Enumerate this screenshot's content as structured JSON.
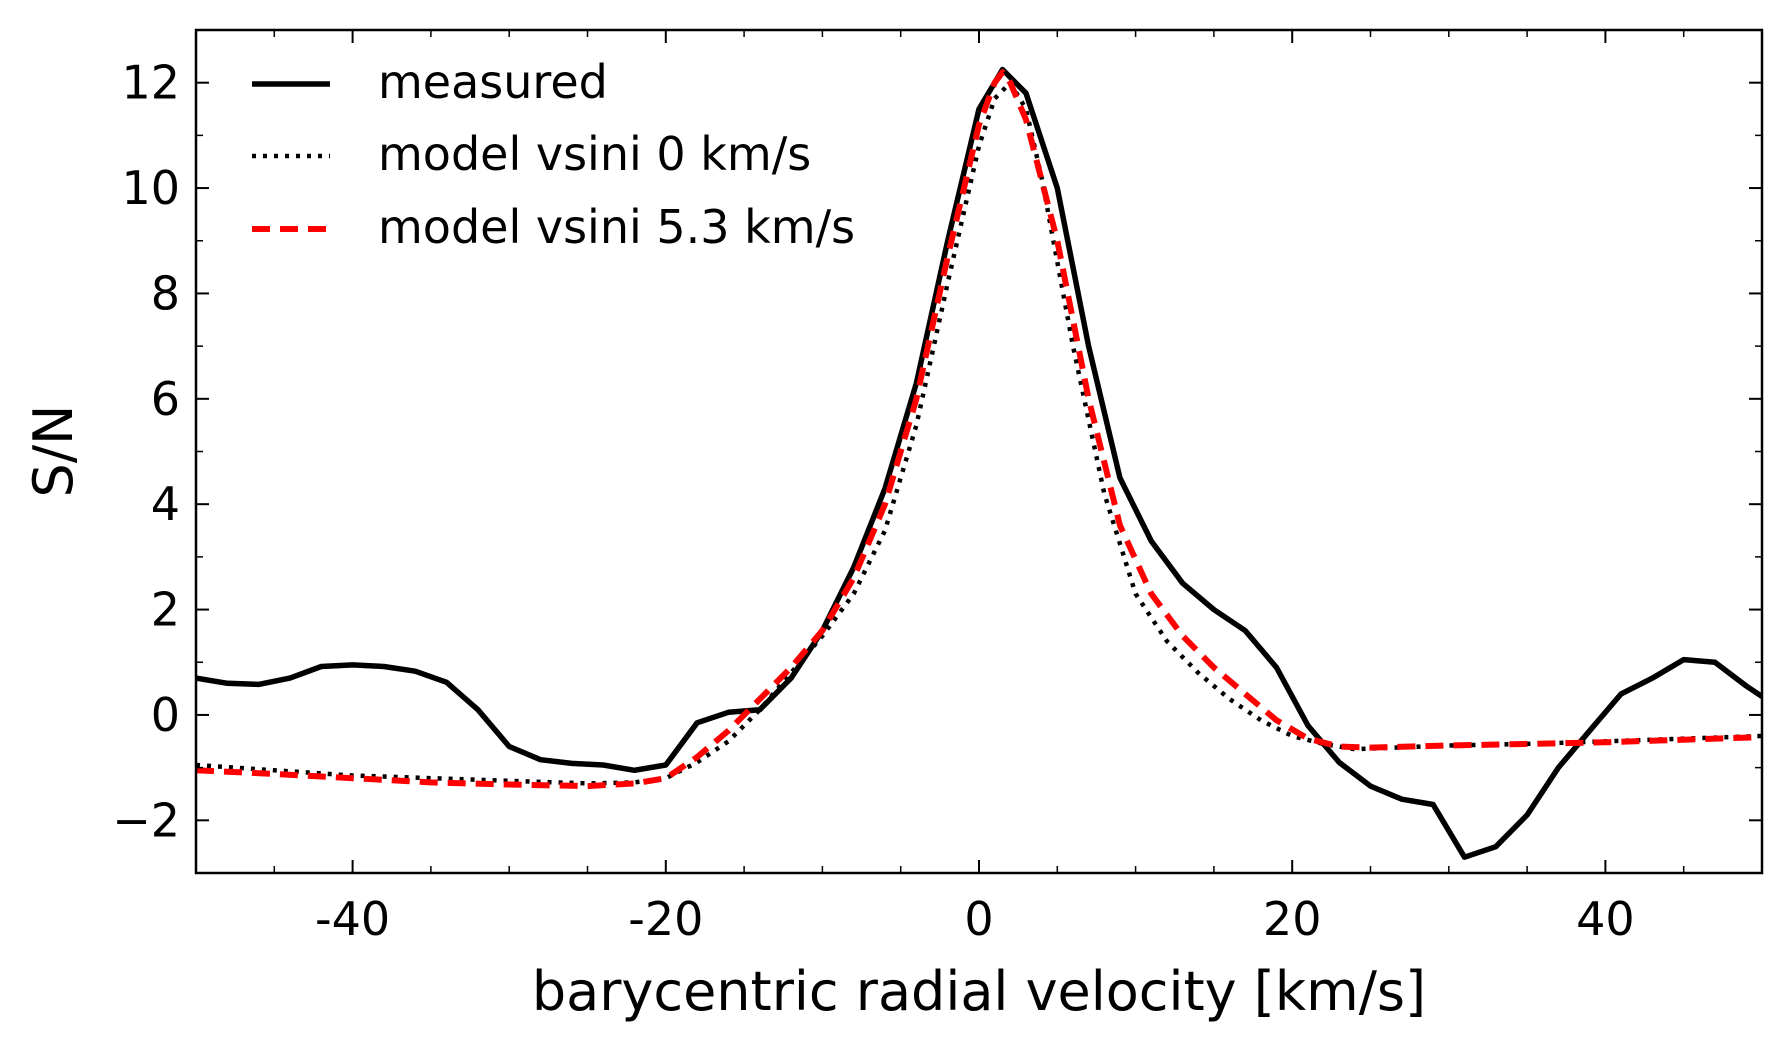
{
  "chart_data": {
    "type": "line",
    "title": "",
    "xlabel": "barycentric radial velocity [km/s]",
    "ylabel": "S/N",
    "xlim": [
      -50,
      50
    ],
    "ylim": [
      -3,
      13
    ],
    "x_ticks": [
      -40,
      -20,
      0,
      20,
      40
    ],
    "x_tick_labels": [
      "-40",
      "-20",
      "0",
      "20",
      "40"
    ],
    "y_ticks": [
      -2,
      0,
      2,
      4,
      6,
      8,
      10,
      12
    ],
    "y_tick_labels": [
      "−2",
      "0",
      "2",
      "4",
      "6",
      "8",
      "10",
      "12"
    ],
    "grid": false,
    "legend_position": "top-left",
    "series": [
      {
        "name": "measured",
        "style": "solid",
        "color": "#000000",
        "x": [
          -50,
          -48,
          -46,
          -44,
          -42,
          -40,
          -38,
          -36,
          -34,
          -32,
          -30,
          -28,
          -26,
          -24,
          -22,
          -20,
          -18,
          -16,
          -14,
          -12,
          -10,
          -8,
          -6,
          -4,
          -2,
          0,
          1.5,
          3,
          5,
          7,
          9,
          11,
          13,
          15,
          17,
          19,
          21,
          23,
          25,
          27,
          29,
          31,
          33,
          35,
          37,
          39,
          41,
          43,
          45,
          47,
          49,
          50
        ],
        "y": [
          0.7,
          0.6,
          0.58,
          0.7,
          0.92,
          0.95,
          0.92,
          0.83,
          0.62,
          0.1,
          -0.6,
          -0.85,
          -0.92,
          -0.95,
          -1.05,
          -0.95,
          -0.15,
          0.05,
          0.1,
          0.7,
          1.6,
          2.8,
          4.3,
          6.3,
          9.0,
          11.5,
          12.25,
          11.8,
          10.0,
          7.0,
          4.5,
          3.3,
          2.5,
          2.0,
          1.6,
          0.9,
          -0.2,
          -0.9,
          -1.35,
          -1.6,
          -1.7,
          -2.7,
          -2.5,
          -1.9,
          -1.0,
          -0.3,
          0.4,
          0.7,
          1.05,
          1.0,
          0.55,
          0.35
        ]
      },
      {
        "name": "model vsini 0 km/s",
        "style": "dotted",
        "color": "#000000",
        "x": [
          -50,
          -45,
          -40,
          -35,
          -30,
          -25,
          -22,
          -20,
          -18,
          -16,
          -14,
          -12,
          -10,
          -8,
          -6,
          -4,
          -2,
          0,
          1,
          2,
          3,
          4,
          6,
          8,
          10,
          12,
          14,
          16,
          18,
          20,
          22,
          24,
          30,
          35,
          40,
          45,
          50
        ],
        "y": [
          -0.95,
          -1.05,
          -1.15,
          -1.2,
          -1.25,
          -1.3,
          -1.28,
          -1.2,
          -0.9,
          -0.5,
          0.1,
          0.8,
          1.5,
          2.3,
          3.5,
          5.5,
          8.2,
          10.8,
          11.7,
          12.0,
          11.5,
          10.2,
          7.0,
          4.2,
          2.3,
          1.4,
          0.8,
          0.3,
          -0.1,
          -0.4,
          -0.55,
          -0.65,
          -0.58,
          -0.55,
          -0.5,
          -0.45,
          -0.4
        ]
      },
      {
        "name": "model vsini 5.3 km/s",
        "style": "dashed",
        "color": "#ff0000",
        "x": [
          -50,
          -45,
          -40,
          -35,
          -30,
          -25,
          -22,
          -20,
          -18,
          -16,
          -14,
          -12,
          -10,
          -8,
          -6,
          -4,
          -2,
          0,
          1,
          1.5,
          2,
          3,
          5,
          7,
          9,
          11,
          13,
          15,
          17,
          19,
          21,
          23,
          25,
          30,
          35,
          40,
          45,
          50
        ],
        "y": [
          -1.05,
          -1.12,
          -1.2,
          -1.28,
          -1.32,
          -1.35,
          -1.3,
          -1.2,
          -0.8,
          -0.3,
          0.3,
          0.9,
          1.6,
          2.6,
          4.0,
          6.0,
          8.7,
          11.2,
          12.0,
          12.2,
          12.0,
          11.3,
          9.0,
          6.0,
          3.6,
          2.3,
          1.5,
          0.9,
          0.4,
          -0.1,
          -0.45,
          -0.6,
          -0.62,
          -0.58,
          -0.55,
          -0.52,
          -0.47,
          -0.42
        ]
      }
    ]
  }
}
